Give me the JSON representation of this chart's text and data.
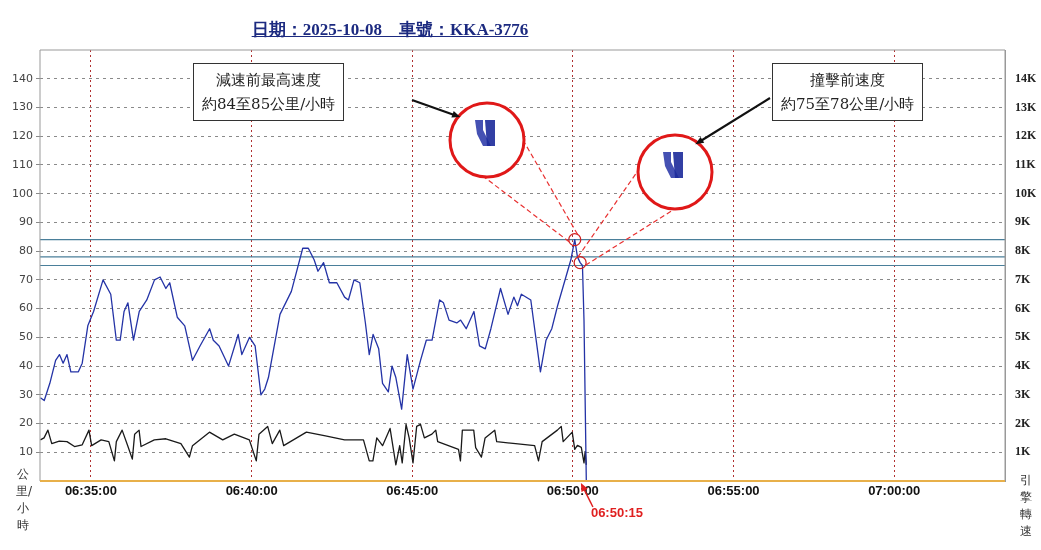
{
  "chart_data": {
    "type": "line",
    "title": "日期：2025-10-08　車號：KKA-3776",
    "ylabel": "公里/小時",
    "y2label": "引擎轉速",
    "annotations": [
      "減速前最高速度",
      "約84至85公里/小時",
      "撞擊前速度",
      "約75至78公里/小時",
      {
        "text": "06:50:15",
        "x": 6.8375,
        "y": 0
      }
    ],
    "xlim": [
      6.5569,
      7.0575
    ],
    "xticks": [
      {
        "value": 6.5833,
        "label": "06:35:00"
      },
      {
        "value": 6.6667,
        "label": "06:40:00"
      },
      {
        "value": 6.75,
        "label": "06:45:00"
      },
      {
        "value": 6.8333,
        "label": "06:50:00"
      },
      {
        "value": 6.9167,
        "label": "06:55:00"
      },
      {
        "value": 7,
        "label": "07:00:00"
      }
    ],
    "ylim": [
      0,
      150
    ],
    "yticks": [
      10,
      20,
      30,
      40,
      50,
      60,
      70,
      80,
      90,
      100,
      110,
      120,
      130,
      140
    ],
    "y2lim": [
      0,
      15000
    ],
    "y2ticks": [
      {
        "value": 1000,
        "label": "1K"
      },
      {
        "value": 2000,
        "label": "2K"
      },
      {
        "value": 3000,
        "label": "3K"
      },
      {
        "value": 4000,
        "label": "4K"
      },
      {
        "value": 5000,
        "label": "5K"
      },
      {
        "value": 6000,
        "label": "6K"
      },
      {
        "value": 7000,
        "label": "7K"
      },
      {
        "value": 8000,
        "label": "8K"
      },
      {
        "value": 9000,
        "label": "9K"
      },
      {
        "value": 10000,
        "label": "10K"
      },
      {
        "value": 11000,
        "label": "11K"
      },
      {
        "value": 12000,
        "label": "12K"
      },
      {
        "value": 13000,
        "label": "13K"
      },
      {
        "value": 14000,
        "label": "14K"
      }
    ],
    "grid": true,
    "marker": "none",
    "ref_lines": [
      {
        "axis": "y",
        "value": 84,
        "color": "#4a7f9a"
      },
      {
        "axis": "y",
        "value": 78,
        "color": "#4a7f9a"
      },
      {
        "axis": "y",
        "value": 75,
        "color": "#4a7f9a"
      }
    ],
    "series": [
      {
        "type": "scatter",
        "color": "#d02020",
        "marker": "circle",
        "x": [
          6.8343,
          6.8371
        ],
        "values": [
          84,
          76
        ]
      },
      {
        "color": "#2433a6",
        "x": [
          6.5571,
          6.5591,
          6.562,
          6.565,
          6.567,
          6.5689,
          6.5709,
          6.5729,
          6.5768,
          6.5788,
          6.5817,
          6.5847,
          6.5896,
          6.5936,
          6.5965,
          6.5985,
          6.6005,
          6.6025,
          6.6054,
          6.6084,
          6.6123,
          6.6163,
          6.6192,
          6.6222,
          6.6242,
          6.6281,
          6.632,
          6.636,
          6.6399,
          6.6449,
          6.6468,
          6.6498,
          6.6547,
          6.6597,
          6.6616,
          6.6656,
          6.6685,
          6.6715,
          6.6735,
          6.6754,
          6.6814,
          6.6873,
          6.6932,
          6.6961,
          6.6991,
          6.7011,
          6.704,
          6.707,
          6.7109,
          6.7149,
          6.7169,
          6.7198,
          6.7228,
          6.7257,
          6.7277,
          6.7297,
          6.7326,
          6.7346,
          6.7376,
          6.7395,
          6.7415,
          6.7445,
          6.7474,
          6.7504,
          6.7543,
          6.7573,
          6.7603,
          6.7642,
          6.7662,
          6.7691,
          6.7731,
          6.7751,
          6.778,
          6.782,
          6.7849,
          6.7879,
          6.7908,
          6.7958,
          6.7997,
          6.8027,
          6.8046,
          6.8066,
          6.8115,
          6.8165,
          6.8194,
          6.8224,
          6.8254,
          6.8323,
          6.8343,
          6.8357,
          6.8371,
          6.8383,
          6.8391,
          6.8403
        ],
        "values": [
          29,
          28,
          34,
          42,
          44,
          41,
          44,
          38,
          38,
          41,
          54,
          59,
          70,
          65,
          49,
          49,
          59,
          62,
          49,
          59,
          63,
          70,
          71,
          67,
          69,
          57,
          54,
          42,
          47,
          53,
          49,
          47,
          40,
          51,
          44,
          50,
          47,
          30,
          32,
          36,
          58,
          66,
          81,
          81,
          77,
          73,
          76,
          69,
          69,
          64,
          63,
          70,
          69,
          55,
          44,
          51,
          46,
          34,
          31,
          40,
          36,
          25,
          44,
          32,
          42,
          49,
          49,
          63,
          62,
          56,
          55,
          56,
          53,
          59,
          47,
          46,
          53,
          67,
          58,
          64,
          61,
          65,
          63,
          38,
          49,
          53,
          61,
          77,
          84,
          78,
          76,
          75,
          56,
          0
        ]
      },
      {
        "color": "#1a1a1a",
        "axis": "y2",
        "x": [
          6.5571,
          6.559,
          6.561,
          6.563,
          6.5669,
          6.5709,
          6.5748,
          6.5788,
          6.5823,
          6.5837,
          6.5886,
          6.5926,
          6.5955,
          6.5965,
          6.5995,
          6.6024,
          6.6048,
          6.606,
          6.6083,
          6.6093,
          6.6162,
          6.6222,
          6.63,
          6.6344,
          6.636,
          6.6448,
          6.6517,
          6.6577,
          6.6655,
          6.6691,
          6.6705,
          6.675,
          6.6774,
          6.6813,
          6.6833,
          6.6951,
          6.705,
          6.7149,
          6.7247,
          6.7277,
          6.7296,
          6.7316,
          6.7346,
          6.7385,
          6.7415,
          6.7435,
          6.7448,
          6.7468,
          6.7484,
          6.7504,
          6.7523,
          6.7543,
          6.7563,
          6.7602,
          6.7622,
          6.7632,
          6.774,
          6.775,
          6.776,
          6.7819,
          6.7829,
          6.7859,
          6.7878,
          6.7928,
          6.7938,
          6.8036,
          6.8135,
          6.8155,
          6.8174,
          6.8253,
          6.8273,
          6.8283,
          6.833,
          6.8343,
          6.8357,
          6.8377,
          6.8391,
          6.8397,
          6.8403
        ],
        "values": [
          1430,
          1500,
          1770,
          1300,
          1390,
          1370,
          1200,
          1260,
          1770,
          1230,
          1430,
          1370,
          700,
          1370,
          1770,
          1230,
          760,
          1630,
          1770,
          1200,
          1430,
          1470,
          1300,
          830,
          1230,
          1700,
          1430,
          1630,
          1430,
          700,
          1630,
          1900,
          1300,
          1770,
          1230,
          1700,
          1570,
          1430,
          1430,
          700,
          700,
          1500,
          1230,
          1830,
          560,
          1230,
          630,
          1970,
          1500,
          630,
          1900,
          1970,
          1500,
          1630,
          1770,
          1370,
          1100,
          700,
          1770,
          1770,
          1160,
          830,
          1500,
          1770,
          1370,
          1300,
          1230,
          700,
          1370,
          1770,
          1900,
          1370,
          1700,
          1100,
          1240,
          1170,
          630,
          1030,
          560
        ]
      }
    ]
  }
}
